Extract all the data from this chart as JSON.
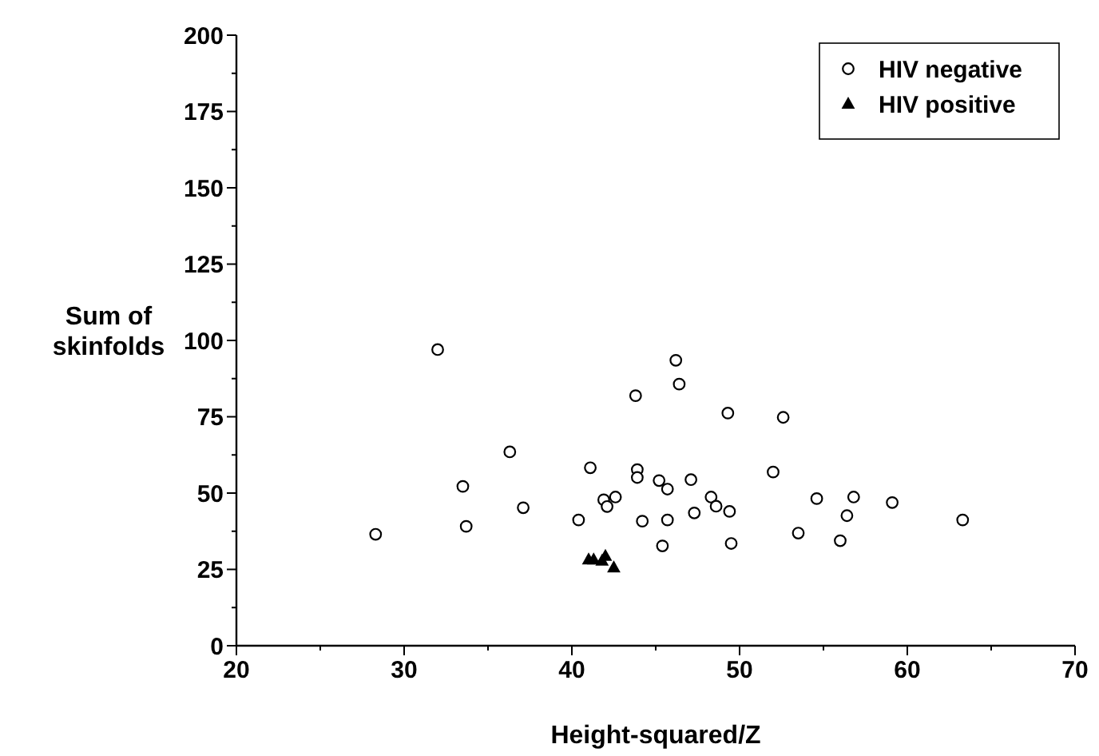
{
  "chart_data": {
    "type": "scatter",
    "xlabel": "Height-squared/Z",
    "ylabel": "Sum of skinfolds",
    "xlim": [
      20,
      70
    ],
    "ylim": [
      0,
      200
    ],
    "xticks": [
      20,
      {
        "value": 25,
        "label": null
      },
      30,
      {
        "value": 35,
        "label": null
      },
      40,
      {
        "value": 45,
        "label": null
      },
      50,
      {
        "value": 55,
        "label": null
      },
      60,
      {
        "value": 65,
        "label": null
      },
      70
    ],
    "yticks": [
      0,
      {
        "value": 12.5,
        "label": null
      },
      25,
      {
        "value": 37.5,
        "label": null
      },
      50,
      {
        "value": 62.5,
        "label": null
      },
      75,
      {
        "value": 87.5,
        "label": null
      },
      100,
      {
        "value": 112.5,
        "label": null
      },
      125,
      {
        "value": 137.5,
        "label": null
      },
      150,
      {
        "value": 162.5,
        "label": null
      },
      175,
      {
        "value": 187.5,
        "label": null
      },
      200
    ],
    "legend": "top right",
    "grid": false,
    "series": [
      {
        "name": "HIV negative",
        "color": "#000000",
        "marker": "circle",
        "x": [
          28.3,
          32.0,
          33.5,
          33.7,
          36.3,
          37.1,
          40.4,
          41.1,
          43.8,
          43.9,
          43.9,
          44.2,
          41.9,
          42.1,
          42.6,
          46.2,
          46.4,
          49.3,
          52.6,
          52.0,
          45.2,
          45.7,
          47.1,
          48.3,
          48.6,
          49.4,
          47.3,
          45.7,
          45.4,
          49.5,
          53.5,
          54.6,
          56.8,
          56.4,
          56.0,
          59.1,
          63.3
        ],
        "values": [
          36.5,
          97.0,
          52.2,
          39.1,
          63.5,
          45.2,
          41.2,
          58.3,
          81.9,
          57.7,
          55.1,
          40.8,
          47.8,
          45.6,
          48.7,
          93.5,
          85.7,
          76.2,
          74.8,
          56.9,
          54.1,
          51.3,
          54.4,
          48.7,
          45.7,
          44.0,
          43.5,
          41.2,
          32.7,
          33.5,
          36.9,
          48.2,
          48.7,
          42.6,
          34.4,
          46.9,
          41.2
        ]
      },
      {
        "name": "HIV positive",
        "color": "#000000",
        "marker": "triangle",
        "x": [
          41.0,
          41.3,
          42.0,
          41.8,
          42.5
        ],
        "values": [
          28.2,
          28.2,
          29.4,
          27.8,
          25.6
        ]
      }
    ]
  }
}
